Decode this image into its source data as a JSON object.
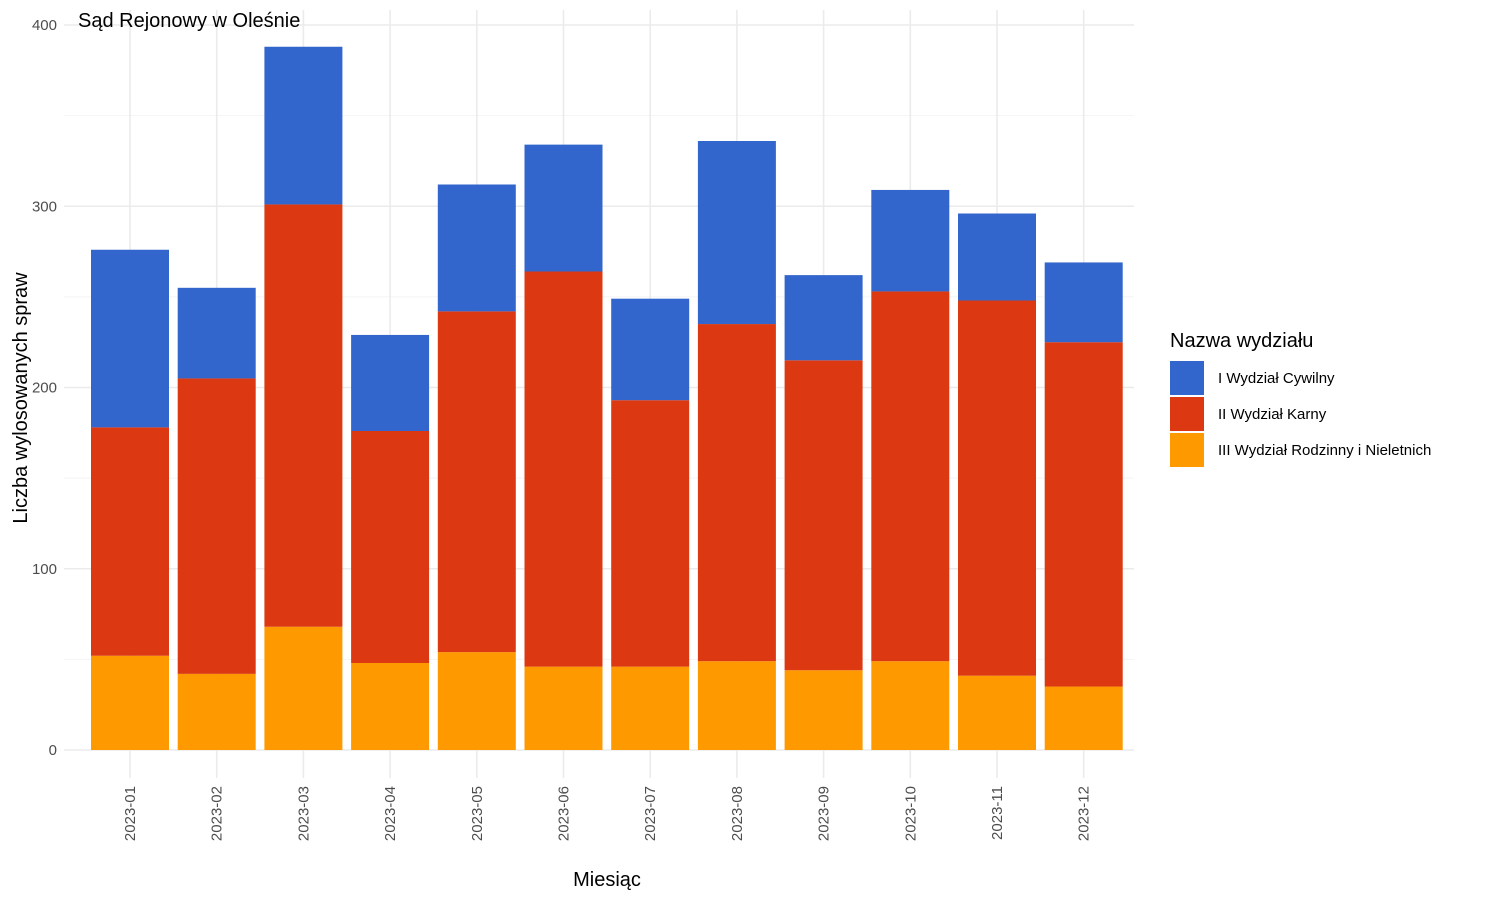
{
  "chart_data": {
    "type": "bar",
    "stacked": true,
    "title": "Sąd Rejonowy w Oleśnie",
    "xlabel": "Miesiąc",
    "ylabel": "Liczba wylosowanych spraw",
    "ylim": [
      0,
      400
    ],
    "yticks": [
      0,
      100,
      200,
      300,
      400
    ],
    "grid": true,
    "legend_title": "Nazwa wydziału",
    "legend_position": "right",
    "categories": [
      "2023-01",
      "2023-02",
      "2023-03",
      "2023-04",
      "2023-05",
      "2023-06",
      "2023-07",
      "2023-08",
      "2023-09",
      "2023-10",
      "2023-11",
      "2023-12"
    ],
    "series": [
      {
        "name": "III Wydział Rodzinny i Nieletnich",
        "color": "#ff9900",
        "values": [
          52,
          42,
          68,
          48,
          54,
          46,
          46,
          49,
          44,
          49,
          41,
          35
        ]
      },
      {
        "name": "II Wydział Karny",
        "color": "#dc3912",
        "values": [
          126,
          163,
          233,
          128,
          188,
          218,
          147,
          186,
          171,
          204,
          207,
          190
        ]
      },
      {
        "name": "I Wydział Cywilny",
        "color": "#3366cc",
        "values": [
          98,
          50,
          87,
          53,
          70,
          70,
          56,
          101,
          47,
          56,
          48,
          44
        ]
      }
    ],
    "legend_order": [
      "I Wydział Cywilny",
      "II Wydział Karny",
      "III Wydział Rodzinny i Nieletnich"
    ]
  }
}
